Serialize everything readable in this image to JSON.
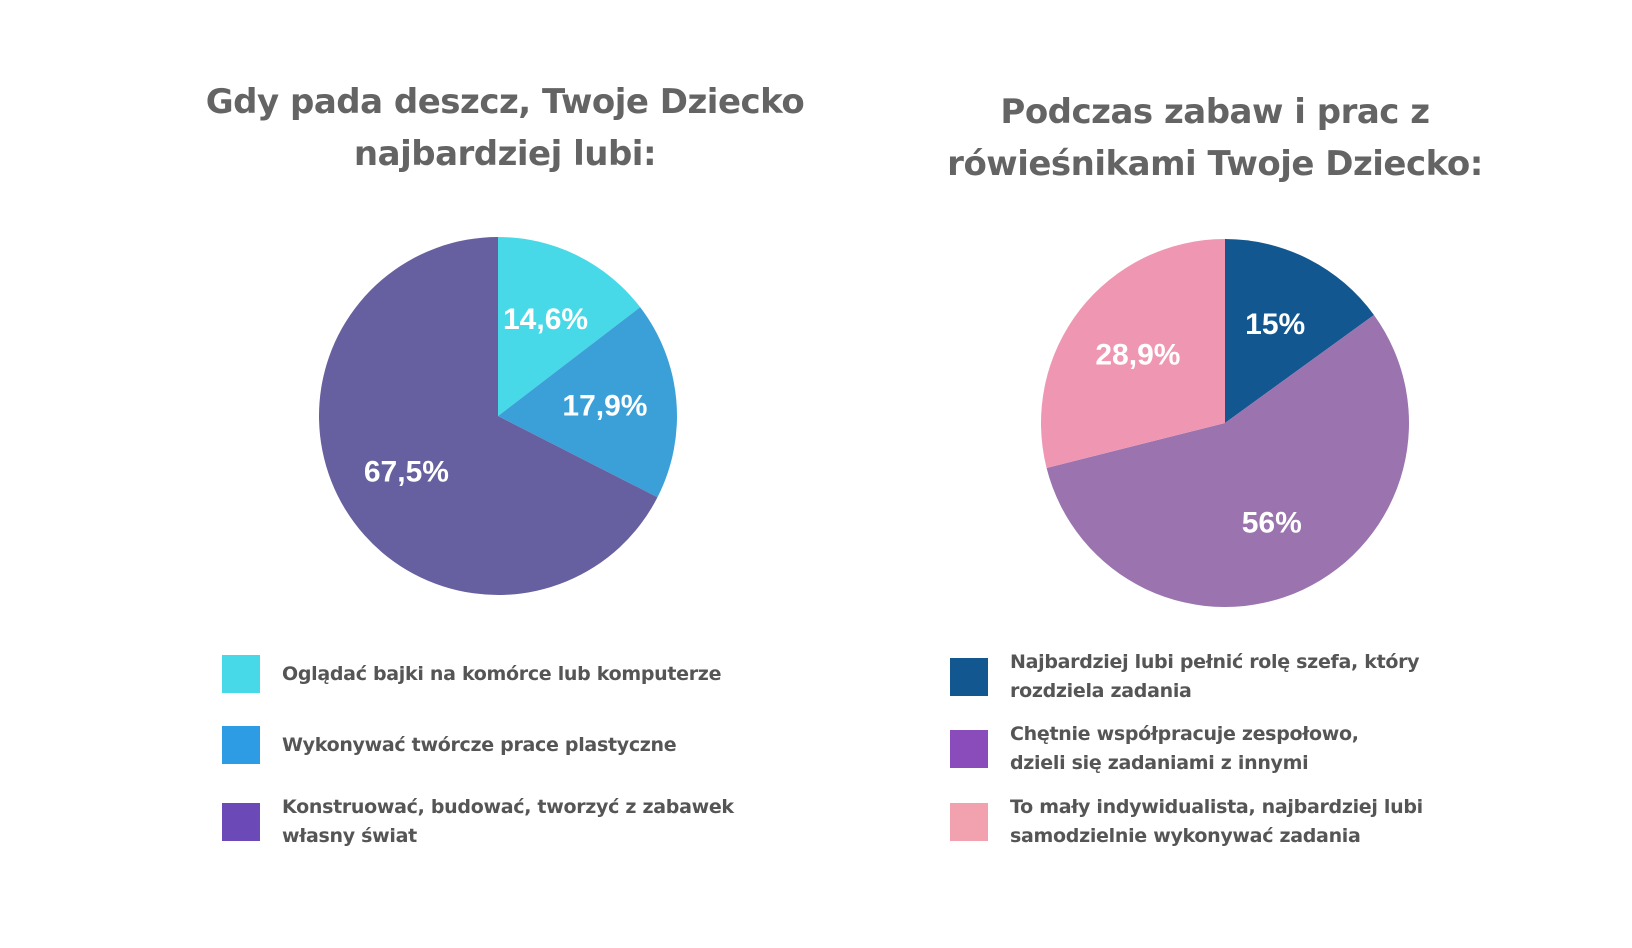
{
  "chart_data": [
    {
      "type": "pie",
      "title": [
        "Gdy pada deszcz, Twoje Dziecko",
        "najbardziej lubi:"
      ],
      "slices": [
        {
          "label": [
            "Oglądać bajki na komórce lub komputerze"
          ],
          "value": 14.6,
          "value_label": "14,6%",
          "color": "#47d9e7",
          "legend_color": "#47d9e7"
        },
        {
          "label": [
            "Wykonywać twórcze prace plastyczne"
          ],
          "value": 17.9,
          "value_label": "17,9%",
          "color": "#3ba0d8",
          "legend_color": "#2e9ce4"
        },
        {
          "label": [
            "Konstruować, budować, tworzyć z zabawek",
            "własny świat"
          ],
          "value": 67.5,
          "value_label": "67,5%",
          "color": "#665fa0",
          "legend_color": "#6b4ab8"
        }
      ],
      "legend_position": "bottom"
    },
    {
      "type": "pie",
      "title": [
        "Podczas zabaw i prac z",
        "rówieśnikami Twoje Dziecko:"
      ],
      "slices": [
        {
          "label": [
            "Najbardziej lubi pełnić rolę szefa, który",
            "rozdziela zadania"
          ],
          "value": 15,
          "value_label": "15%",
          "color": "#135791",
          "legend_color": "#135791"
        },
        {
          "label": [
            "Chętnie współpracuje zespołowo,",
            "dzieli się zadaniami z innymi"
          ],
          "value": 56,
          "value_label": "56%",
          "color": "#9a73af",
          "legend_color": "#8a4bbb"
        },
        {
          "label": [
            "To mały indywidualista, najbardziej lubi",
            "samodzielnie wykonywać zadania"
          ],
          "value": 28.9,
          "value_label": "28,9%",
          "color": "#ef97b2",
          "legend_color": "#f2a2ae"
        }
      ],
      "legend_position": "bottom"
    }
  ]
}
